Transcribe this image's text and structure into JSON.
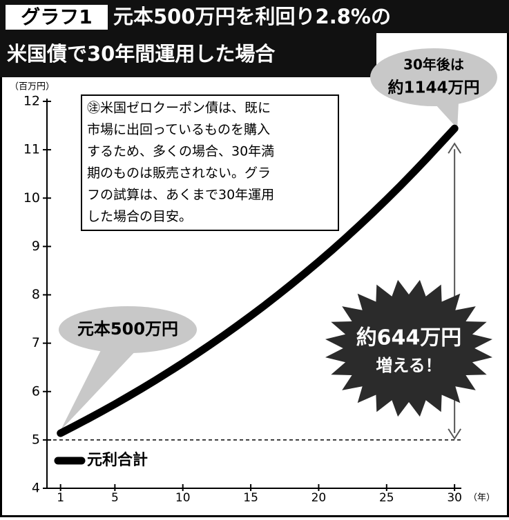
{
  "chart_data": {
    "type": "line",
    "title_tag": "グラフ1",
    "title": [
      "元本500万円を利回り2.8%の",
      "米国債で30年間運用した場合"
    ],
    "y_unit": "（百万円）",
    "x_unit": "（年）",
    "x": [
      1,
      2,
      3,
      4,
      5,
      6,
      7,
      8,
      9,
      10,
      11,
      12,
      13,
      14,
      15,
      16,
      17,
      18,
      19,
      20,
      21,
      22,
      23,
      24,
      25,
      26,
      27,
      28,
      29,
      30
    ],
    "series": [
      {
        "name": "元利合計",
        "color": "#000000",
        "values": [
          5.14,
          5.284,
          5.432,
          5.584,
          5.74,
          5.901,
          6.066,
          6.236,
          6.411,
          6.59,
          6.775,
          6.964,
          7.159,
          7.36,
          7.566,
          7.778,
          7.996,
          8.22,
          8.45,
          8.686,
          8.929,
          9.179,
          9.437,
          9.701,
          9.972,
          10.252,
          10.539,
          10.834,
          11.137,
          11.44
        ]
      }
    ],
    "xlim": [
      0,
      30.5
    ],
    "ylim": [
      4,
      12
    ],
    "xticks": [
      1,
      5,
      10,
      15,
      20,
      25,
      30
    ],
    "yticks": [
      4,
      5,
      6,
      7,
      8,
      9,
      10,
      11,
      12
    ],
    "reference_line": 5,
    "note": [
      "㊟米国ゼロクーポン債は、既に",
      "市場に出回っているものを購入",
      "するため、多くの場合、30年満",
      "期のものは販売されない。グラ",
      "フの試算は、あくまで30年運用",
      "した場合の目安。"
    ],
    "callout_start": "元本500万円",
    "callout_end": [
      "30年後は",
      "約1144万円"
    ],
    "burst": [
      "約644万円",
      "増える！"
    ]
  }
}
